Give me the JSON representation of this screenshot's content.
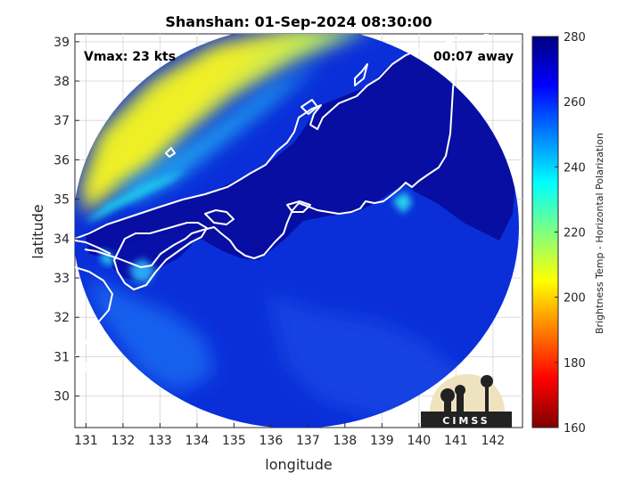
{
  "chart_data": {
    "type": "heatmap",
    "title": "Shanshan: 01-Sep-2024 08:30:00",
    "xlabel": "longitude",
    "ylabel": "latitude",
    "xlim": [
      130.7,
      142.8
    ],
    "ylim": [
      29.2,
      39.2
    ],
    "x_ticks": [
      131,
      132,
      133,
      134,
      135,
      136,
      137,
      138,
      139,
      140,
      141,
      142
    ],
    "y_ticks": [
      30,
      31,
      32,
      33,
      34,
      35,
      36,
      37,
      38,
      39
    ],
    "grid": true,
    "annotations": {
      "vmax": "Vmax: 23 kts",
      "time_offset": "00:07 away"
    },
    "colorbar": {
      "label": "Brightness Temp - Horizontal Polarization",
      "min": 160,
      "max": 280,
      "ticks": [
        160,
        180,
        200,
        220,
        240,
        260,
        280
      ],
      "colormap": "jet"
    },
    "logo": "CIMSS"
  },
  "colors": {
    "coastline": "#ffffff",
    "background": "#ffffff",
    "grid": "#dcdcdc"
  }
}
